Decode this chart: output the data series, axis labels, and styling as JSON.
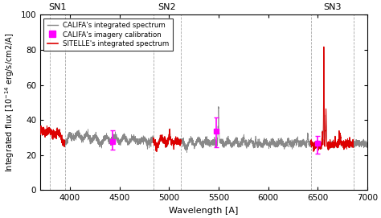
{
  "xlim": [
    3700,
    7000
  ],
  "ylim": [
    0,
    100
  ],
  "yticks": [
    0,
    20,
    40,
    60,
    80,
    100
  ],
  "xticks": [
    4000,
    4500,
    5000,
    5500,
    6000,
    6500,
    7000
  ],
  "xlabel": "Wavelength [A]",
  "ylabel": "Integrated flux [ 10$^{-14}$ erg/s/cm2/A]",
  "sn_labels": [
    "SN1",
    "SN2",
    "SN3"
  ],
  "sn1_vlines": [
    3800,
    3950
  ],
  "sn2_vlines": [
    4840,
    5120
  ],
  "sn3_vlines": [
    6430,
    6860
  ],
  "sn1_range": [
    3700,
    3950
  ],
  "sn2_range": [
    4840,
    5120
  ],
  "sn3_range": [
    6430,
    6860
  ],
  "califa_color": "#888888",
  "sitelle_color": "#dd0000",
  "magenta_color": "#ff00ff",
  "califa_points_x": [
    4430,
    5480,
    6500
  ],
  "califa_points_y": [
    27.5,
    33.5,
    27.0
  ],
  "califa_points_yerr_lo": [
    4.5,
    9.0,
    6.0
  ],
  "califa_points_yerr_hi": [
    6.5,
    8.0,
    4.0
  ],
  "background_color": "#ffffff",
  "figsize": [
    4.74,
    2.71
  ],
  "dpi": 100
}
